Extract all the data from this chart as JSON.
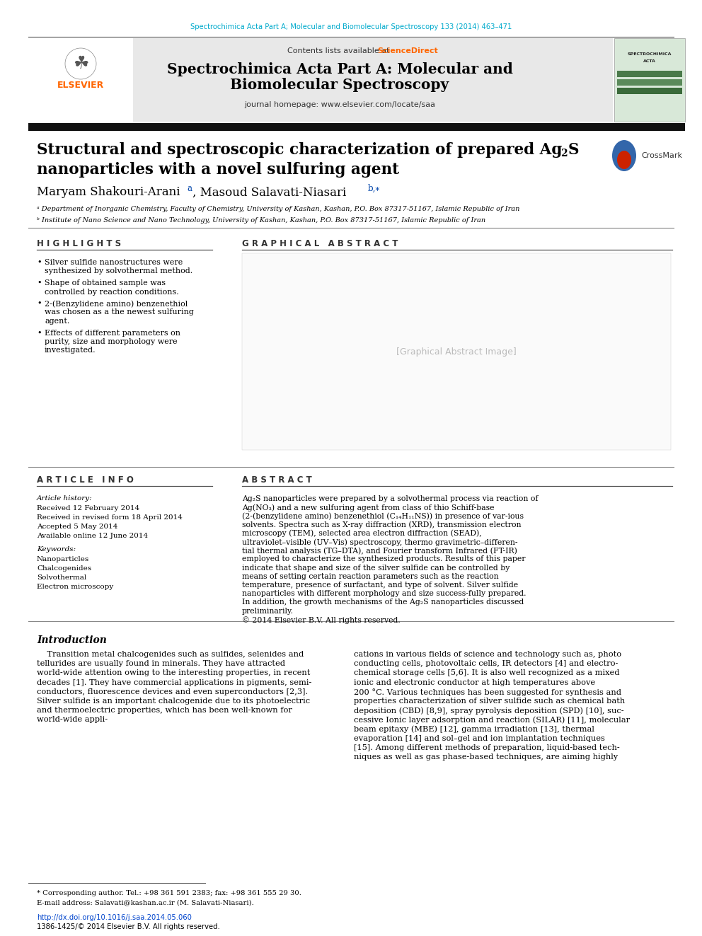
{
  "bg_color": "#ffffff",
  "top_journal_ref": "Spectrochimica Acta Part A; Molecular and Biomolecular Spectroscopy 133 (2014) 463–471",
  "top_journal_ref_color": "#00aacc",
  "header_bg": "#e8e8e8",
  "header_contents": "Contents lists available at",
  "header_sciencedirect": "ScienceDirect",
  "header_sciencedirect_color": "#ff6600",
  "header_homepage": "journal homepage: www.elsevier.com/locate/saa",
  "highlights_title": "H I G H L I G H T S",
  "graphical_abstract_title": "G R A P H I C A L   A B S T R A C T",
  "highlights": [
    "Silver sulfide nanostructures were\nsynthesized by solvothermal method.",
    "Shape of obtained sample was\ncontrolled by reaction conditions.",
    "2-(Benzylidene amino) benzenethiol\nwas chosen as a the newest sulfuring\nagent.",
    "Effects of different parameters on\npurity, size and morphology were\ninvestigated."
  ],
  "article_info_title": "A R T I C L E   I N F O",
  "abstract_title": "A B S T R A C T",
  "article_history_label": "Article history:",
  "article_history": [
    "Received 12 February 2014",
    "Received in revised form 18 April 2014",
    "Accepted 5 May 2014",
    "Available online 12 June 2014"
  ],
  "keywords_label": "Keywords:",
  "keywords": [
    "Nanoparticles",
    "Chalcogenides",
    "Solvothermal",
    "Electron microscopy"
  ],
  "abstract_text": "Ag₂S nanoparticles were prepared by a solvothermal process via reaction of Ag(NO₃) and a new sulfuring agent from class of thio Schiff-base (2-(benzylidene amino) benzenethiol (C₁₄H₁₁NS)) in presence of var-ious solvents. Spectra such as X-ray diffraction (XRD), transmission electron microscopy (TEM), selected area electron diffraction (SEAD), ultraviolet–visible (UV–Vis) spectroscopy, thermo gravimetric–differen-tial thermal analysis (TG–DTA), and Fourier transform Infrared (FT-IR) employed to characterize the synthesized products. Results of this paper indicate that shape and size of the silver sulfide can be controlled by means of setting certain reaction parameters such as the reaction temperature, presence of surfactant, and type of solvent. Silver sulfide nanoparticles with different morphology and size success-fully prepared. In addition, the growth mechanisms of the Ag₂S nanoparticles discussed preliminarily.\n© 2014 Elsevier B.V. All rights reserved.",
  "intro_title": "Introduction",
  "intro_text_left": "    Transition metal chalcogenides such as sulfides, selenides and\ntellurides are usually found in minerals. They have attracted\nworld-wide attention owing to the interesting properties, in recent\ndecades [1]. They have commercial applications in pigments, semi-\nconductors, fluorescence devices and even superconductors [2,3].\nSilver sulfide is an important chalcogenide due to its photoelectric\nand thermoelectric properties, which has been well-known for\nworld-wide appli-",
  "intro_text_right": "cations in various fields of science and technology such as, photo\nconducting cells, photovoltaic cells, IR detectors [4] and electro-\nchemical storage cells [5,6]. It is also well recognized as a mixed\nionic and electronic conductor at high temperatures above\n200 °C. Various techniques has been suggested for synthesis and\nproperties characterization of silver sulfide such as chemical bath\ndeposition (CBD) [8,9], spray pyrolysis deposition (SPD) [10], suc-\ncessive Ionic layer adsorption and reaction (SILAR) [11], molecular\nbeam epitaxy (MBE) [12], gamma irradiation [13], thermal\nevaporation [14] and sol–gel and ion implantation techniques\n[15]. Among different methods of preparation, liquid-based tech-\nniques as well as gas phase-based techniques, are aiming highly",
  "footnote_star": "* Corresponding author. Tel.: +98 361 591 2383; fax: +98 361 555 29 30.",
  "footnote_email": "E-mail address: Salavati@kashan.ac.ir (M. Salavati-Niasari).",
  "doi_text": "http://dx.doi.org/10.1016/j.saa.2014.05.060",
  "doi_color": "#0044cc",
  "issn_text": "1386-1425/© 2014 Elsevier B.V. All rights reserved."
}
